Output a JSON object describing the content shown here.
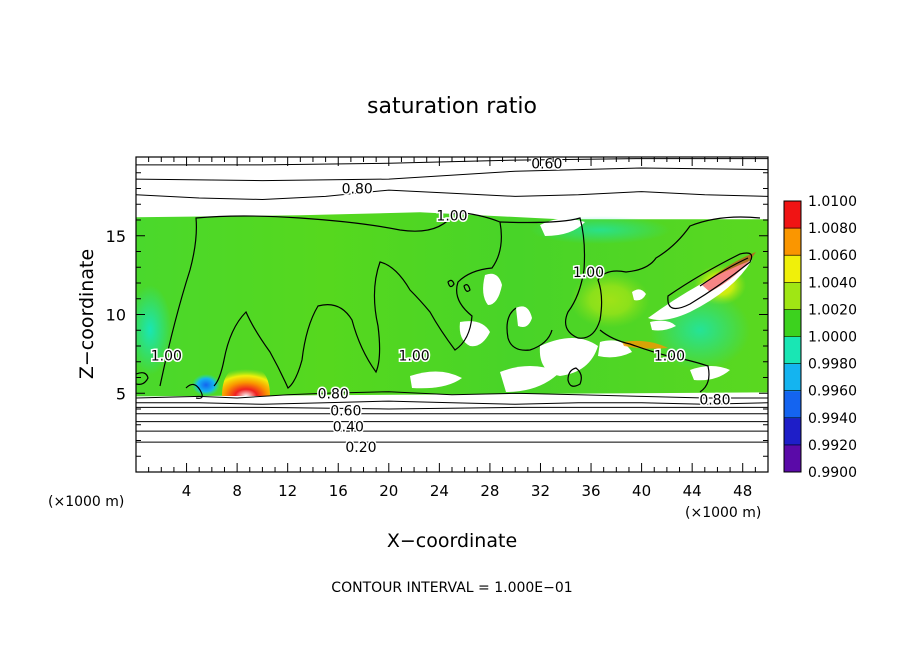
{
  "chart_data": {
    "type": "heatmap",
    "title": "saturation ratio",
    "xlabel": "X−coordinate",
    "ylabel": "Z−coordinate",
    "x_unit_label_left": "(×1000 m)",
    "x_unit_label_right": "(×1000 m)",
    "footer": "CONTOUR INTERVAL = 1.000E−01",
    "xlim": [
      0,
      50
    ],
    "ylim": [
      0,
      20
    ],
    "x_ticks": [
      4,
      8,
      12,
      16,
      20,
      24,
      28,
      32,
      36,
      40,
      44,
      48
    ],
    "x_tick_labels": [
      "4",
      "8",
      "12",
      "16",
      "20",
      "24",
      "28",
      "32",
      "36",
      "40",
      "44",
      "48"
    ],
    "y_ticks": [
      5,
      10,
      15
    ],
    "y_tick_labels": [
      "5",
      "10",
      "15"
    ],
    "colorbar": {
      "levels": [
        0.99,
        0.992,
        0.994,
        0.996,
        0.998,
        1.0,
        1.002,
        1.004,
        1.006,
        1.008,
        1.01
      ],
      "labels": [
        "0.9900",
        "0.9920",
        "0.9940",
        "0.9960",
        "0.9980",
        "1.0000",
        "1.0020",
        "1.0040",
        "1.0060",
        "1.0080",
        "1.0100"
      ],
      "colors": [
        "#5a0aa8",
        "#1e1ec8",
        "#1464f0",
        "#14b4f0",
        "#19e6b4",
        "#3cd21e",
        "#a0e614",
        "#f0f00a",
        "#fa9600",
        "#f01414",
        "#f08282"
      ]
    },
    "cloud_layer": {
      "z_bottom": 4.8,
      "z_top": 16.3
    },
    "contour_labels": [
      {
        "text": "0.20",
        "x": 17.8,
        "z": 1.6
      },
      {
        "text": "0.40",
        "x": 16.8,
        "z": 2.9
      },
      {
        "text": "0.60",
        "x": 16.6,
        "z": 3.9
      },
      {
        "text": "0.80",
        "x": 15.6,
        "z": 5.0
      },
      {
        "text": "0.80",
        "x": 45.8,
        "z": 4.6
      },
      {
        "text": "1.00",
        "x": 2.4,
        "z": 7.4
      },
      {
        "text": "1.00",
        "x": 22.0,
        "z": 7.4
      },
      {
        "text": "1.00",
        "x": 25.0,
        "z": 16.3
      },
      {
        "text": "1.00",
        "x": 35.8,
        "z": 12.7
      },
      {
        "text": "1.00",
        "x": 42.2,
        "z": 7.4
      },
      {
        "text": "0.80",
        "x": 17.5,
        "z": 18.0
      },
      {
        "text": "0.60",
        "x": 32.5,
        "z": 19.6
      }
    ],
    "regions": [
      {
        "x": 8.6,
        "z": 5.3,
        "value": 1.009
      },
      {
        "x": 4.8,
        "z": 5.6,
        "value": 0.994
      },
      {
        "x": 45.0,
        "z": 12.3,
        "value": 1.006
      },
      {
        "x": 39.0,
        "z": 8.6,
        "value": 1.005
      }
    ],
    "contours": [
      {
        "level": 0.2,
        "x": [
          0,
          10,
          20,
          30,
          40,
          50
        ],
        "z": [
          1.9,
          1.9,
          1.9,
          1.9,
          1.9,
          1.9
        ]
      },
      {
        "level": 0.3,
        "x": [
          0,
          10,
          20,
          30,
          40,
          50
        ],
        "z": [
          2.6,
          2.6,
          2.6,
          2.6,
          2.6,
          2.6
        ]
      },
      {
        "level": 0.4,
        "x": [
          0,
          10,
          20,
          30,
          40,
          50
        ],
        "z": [
          3.2,
          3.2,
          3.2,
          3.2,
          3.2,
          3.2
        ]
      },
      {
        "level": 0.5,
        "x": [
          0,
          10,
          20,
          30,
          40,
          50
        ],
        "z": [
          3.7,
          3.7,
          3.7,
          3.7,
          3.7,
          3.7
        ]
      },
      {
        "level": 0.6,
        "x": [
          0,
          10,
          20,
          30,
          40,
          50
        ],
        "z": [
          4.1,
          4.1,
          4.0,
          4.1,
          4.1,
          4.1
        ]
      },
      {
        "level": 0.7,
        "x": [
          0,
          5,
          10,
          15,
          20,
          25,
          30,
          35,
          40,
          45,
          50
        ],
        "z": [
          4.4,
          4.4,
          4.3,
          4.4,
          4.5,
          4.4,
          4.3,
          4.4,
          4.4,
          4.3,
          4.4
        ]
      },
      {
        "level": 0.8,
        "x": [
          0,
          5,
          8,
          12,
          15,
          20,
          25,
          30,
          35,
          40,
          45,
          50
        ],
        "z": [
          4.7,
          4.8,
          4.7,
          4.9,
          5.0,
          5.1,
          4.9,
          5.0,
          4.9,
          4.8,
          4.7,
          4.7
        ]
      },
      {
        "level": 0.8,
        "x": [
          0,
          5,
          10,
          15,
          20,
          25,
          30,
          35,
          40,
          45,
          50
        ],
        "z": [
          17.6,
          17.4,
          17.3,
          17.5,
          17.9,
          17.7,
          17.5,
          17.6,
          17.8,
          17.6,
          17.5
        ]
      },
      {
        "level": 0.6,
        "x": [
          0,
          10,
          20,
          30,
          40,
          50
        ],
        "z": [
          18.6,
          18.5,
          18.6,
          19.1,
          19.3,
          19.2
        ]
      },
      {
        "level": 0.4,
        "x": [
          0,
          10,
          20,
          30,
          40,
          50
        ],
        "z": [
          19.5,
          19.5,
          19.6,
          19.8,
          19.9,
          19.9
        ]
      }
    ]
  }
}
